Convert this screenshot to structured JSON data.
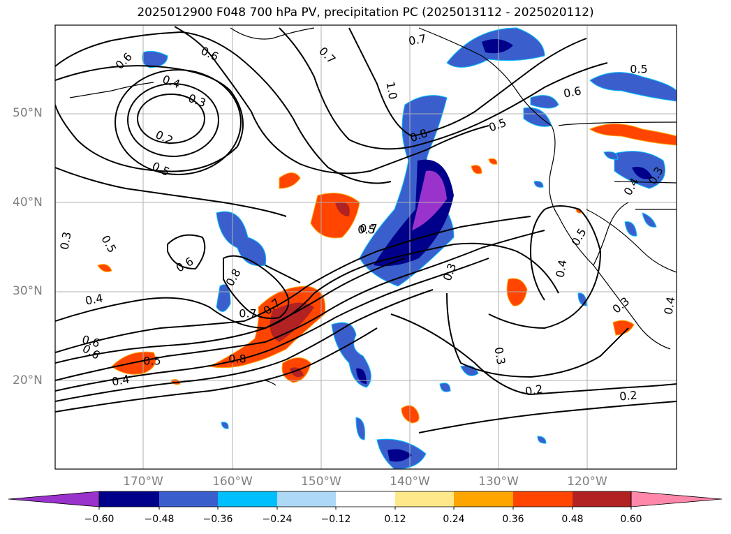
{
  "title": "2025012900 F048 700 hPa PV, precipitation PC (2025013112 - 2025020112)",
  "lat_labels": [
    "50°N",
    "40°N",
    "30°N",
    "20°N"
  ],
  "lon_labels": [
    "170°W",
    "160°W",
    "150°W",
    "140°W",
    "130°W",
    "120°W"
  ],
  "colorbar": {
    "ticks": [
      "−0.60",
      "−0.48",
      "−0.36",
      "−0.24",
      "−0.12",
      "0.12",
      "0.24",
      "0.36",
      "0.48",
      "0.60"
    ],
    "colors": [
      "#9933cc",
      "#00008b",
      "#3a5fcd",
      "#00bfff",
      "#add8f6",
      "#ffffff",
      "#ffe88a",
      "#ffa500",
      "#ff4500",
      "#b22222",
      "#ff88aa"
    ]
  },
  "contour_labels": [
    "0.6",
    "0.4",
    "0.3",
    "0.2",
    "0.5",
    "0.7",
    "0.6",
    "0.5",
    "1.0",
    "0.8",
    "0.7",
    "0.6",
    "0.8",
    "0.5",
    "0.6",
    "0.3",
    "0.5",
    "0.4",
    "0.7",
    "0.8",
    "0.7",
    "0.6",
    "0.6",
    "0.7",
    "0.5",
    "0.4",
    "0.2",
    "0.3",
    "0.3",
    "0.2",
    "0.4",
    "0.5",
    "0.3",
    "0.4",
    "0.5",
    "0.3",
    "0.4"
  ]
}
